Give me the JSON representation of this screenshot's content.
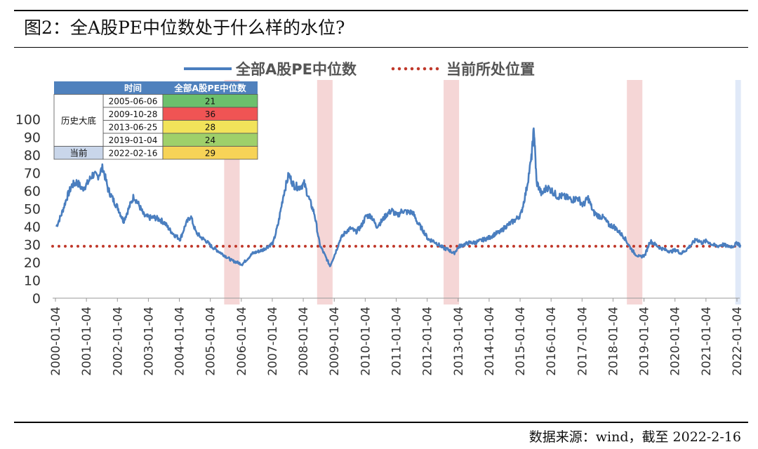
{
  "header": {
    "title": "图2：全A股PE中位数处于什么样的水位?"
  },
  "footer": {
    "source": "数据来源：wind，截至 2022-2-16"
  },
  "chart_data": {
    "type": "line",
    "title": "",
    "xlabel": "",
    "ylabel": "",
    "ylim": [
      0,
      100
    ],
    "yticks": [
      0,
      10,
      20,
      30,
      40,
      50,
      60,
      70,
      80,
      90,
      100
    ],
    "xticks": [
      "2000-01-04",
      "2001-01-04",
      "2002-01-04",
      "2003-01-04",
      "2004-01-04",
      "2005-01-04",
      "2006-01-04",
      "2007-01-04",
      "2008-01-04",
      "2009-01-04",
      "2010-01-04",
      "2011-01-04",
      "2012-01-04",
      "2013-01-04",
      "2014-01-04",
      "2015-01-04",
      "2016-01-04",
      "2017-01-04",
      "2018-01-04",
      "2019-01-04",
      "2020-01-04",
      "2021-01-04",
      "2022-01-04"
    ],
    "grid": false,
    "legend": {
      "position": "top",
      "items": [
        {
          "label": "全部A股PE中位数",
          "color": "#4a7ebf",
          "style": "solid"
        },
        {
          "label": "当前所处位置",
          "color": "#c0392b",
          "style": "dotted"
        }
      ]
    },
    "reference_line": {
      "value": 29,
      "label": "当前所处位置"
    },
    "highlight_bands": [
      {
        "start": "2005-06",
        "end": "2005-12",
        "color": "#f2c8c8"
      },
      {
        "start": "2008-06",
        "end": "2008-12",
        "color": "#f2c8c8"
      },
      {
        "start": "2012-07",
        "end": "2013-01",
        "color": "#f2c8c8"
      },
      {
        "start": "2018-06",
        "end": "2018-12",
        "color": "#f2c8c8"
      },
      {
        "start": "2021-12",
        "end": "2022-02",
        "color": "#d6e2f5"
      }
    ],
    "series": [
      {
        "name": "全部A股PE中位数",
        "color": "#4a7ebf",
        "points": [
          [
            "2000-01",
            40
          ],
          [
            "2000-03",
            47
          ],
          [
            "2000-05",
            56
          ],
          [
            "2000-07",
            63
          ],
          [
            "2000-09",
            65
          ],
          [
            "2000-11",
            61
          ],
          [
            "2001-01",
            64
          ],
          [
            "2001-03",
            69
          ],
          [
            "2001-05",
            68
          ],
          [
            "2001-07",
            73
          ],
          [
            "2001-09",
            61
          ],
          [
            "2001-11",
            55
          ],
          [
            "2002-01",
            50
          ],
          [
            "2002-03",
            43
          ],
          [
            "2002-05",
            50
          ],
          [
            "2002-07",
            57
          ],
          [
            "2002-09",
            52
          ],
          [
            "2002-11",
            46
          ],
          [
            "2003-01",
            45
          ],
          [
            "2003-03",
            45
          ],
          [
            "2003-05",
            44
          ],
          [
            "2003-07",
            42
          ],
          [
            "2003-09",
            38
          ],
          [
            "2003-11",
            35
          ],
          [
            "2004-01",
            33
          ],
          [
            "2004-03",
            41
          ],
          [
            "2004-05",
            46
          ],
          [
            "2004-07",
            37
          ],
          [
            "2004-09",
            34
          ],
          [
            "2004-11",
            32
          ],
          [
            "2005-01",
            29
          ],
          [
            "2005-03",
            27
          ],
          [
            "2005-05",
            25
          ],
          [
            "2005-07",
            23
          ],
          [
            "2005-09",
            21
          ],
          [
            "2005-11",
            20
          ],
          [
            "2006-01",
            19
          ],
          [
            "2006-03",
            22
          ],
          [
            "2006-05",
            25
          ],
          [
            "2006-07",
            26
          ],
          [
            "2006-09",
            27
          ],
          [
            "2006-11",
            29
          ],
          [
            "2007-01",
            31
          ],
          [
            "2007-03",
            42
          ],
          [
            "2007-05",
            58
          ],
          [
            "2007-07",
            69
          ],
          [
            "2007-09",
            63
          ],
          [
            "2007-11",
            62
          ],
          [
            "2008-01",
            64
          ],
          [
            "2008-03",
            55
          ],
          [
            "2008-05",
            47
          ],
          [
            "2008-07",
            30
          ],
          [
            "2008-09",
            24
          ],
          [
            "2008-11",
            18
          ],
          [
            "2009-01",
            25
          ],
          [
            "2009-03",
            33
          ],
          [
            "2009-05",
            37
          ],
          [
            "2009-07",
            39
          ],
          [
            "2009-09",
            37
          ],
          [
            "2009-11",
            40
          ],
          [
            "2010-01",
            46
          ],
          [
            "2010-03",
            46
          ],
          [
            "2010-05",
            40
          ],
          [
            "2010-07",
            43
          ],
          [
            "2010-09",
            47
          ],
          [
            "2010-11",
            49
          ],
          [
            "2011-01",
            46
          ],
          [
            "2011-03",
            49
          ],
          [
            "2011-05",
            48
          ],
          [
            "2011-07",
            48
          ],
          [
            "2011-09",
            42
          ],
          [
            "2011-11",
            38
          ],
          [
            "2012-01",
            33
          ],
          [
            "2012-03",
            32
          ],
          [
            "2012-05",
            30
          ],
          [
            "2012-07",
            28
          ],
          [
            "2012-09",
            27
          ],
          [
            "2012-11",
            25
          ],
          [
            "2013-01",
            29
          ],
          [
            "2013-03",
            30
          ],
          [
            "2013-05",
            31
          ],
          [
            "2013-07",
            31
          ],
          [
            "2013-09",
            32
          ],
          [
            "2013-11",
            33
          ],
          [
            "2014-01",
            34
          ],
          [
            "2014-03",
            36
          ],
          [
            "2014-05",
            37
          ],
          [
            "2014-07",
            40
          ],
          [
            "2014-09",
            42
          ],
          [
            "2014-11",
            44
          ],
          [
            "2015-01",
            47
          ],
          [
            "2015-03",
            60
          ],
          [
            "2015-05",
            78
          ],
          [
            "2015-06",
            95
          ],
          [
            "2015-07",
            65
          ],
          [
            "2015-09",
            58
          ],
          [
            "2015-11",
            62
          ],
          [
            "2016-01",
            60
          ],
          [
            "2016-03",
            57
          ],
          [
            "2016-05",
            57
          ],
          [
            "2016-07",
            56
          ],
          [
            "2016-09",
            55
          ],
          [
            "2016-11",
            56
          ],
          [
            "2017-01",
            52
          ],
          [
            "2017-03",
            56
          ],
          [
            "2017-05",
            48
          ],
          [
            "2017-07",
            46
          ],
          [
            "2017-09",
            45
          ],
          [
            "2017-11",
            41
          ],
          [
            "2018-01",
            40
          ],
          [
            "2018-03",
            37
          ],
          [
            "2018-05",
            34
          ],
          [
            "2018-07",
            29
          ],
          [
            "2018-09",
            25
          ],
          [
            "2018-11",
            23
          ],
          [
            "2019-01",
            24
          ],
          [
            "2019-03",
            32
          ],
          [
            "2019-05",
            30
          ],
          [
            "2019-07",
            28
          ],
          [
            "2019-09",
            27
          ],
          [
            "2019-11",
            26
          ],
          [
            "2020-01",
            27
          ],
          [
            "2020-03",
            25
          ],
          [
            "2020-05",
            27
          ],
          [
            "2020-07",
            30
          ],
          [
            "2020-09",
            33
          ],
          [
            "2020-11",
            31
          ],
          [
            "2021-01",
            32
          ],
          [
            "2021-03",
            30
          ],
          [
            "2021-05",
            29
          ],
          [
            "2021-07",
            30
          ],
          [
            "2021-09",
            29
          ],
          [
            "2021-11",
            29
          ],
          [
            "2022-01",
            31
          ],
          [
            "2022-02",
            29
          ]
        ]
      }
    ],
    "table": {
      "header": [
        "",
        "时间",
        "全部A股PE中位数"
      ],
      "group_label": "历史大底",
      "rows": [
        {
          "date": "2005-06-06",
          "value": "21",
          "color": "#6cc06c"
        },
        {
          "date": "2009-10-28",
          "value": "36",
          "color": "#f05454"
        },
        {
          "date": "2013-06-25",
          "value": "28",
          "color": "#f2e35a"
        },
        {
          "date": "2019-01-04",
          "value": "24",
          "color": "#9fd06a"
        }
      ],
      "current": {
        "label": "当前",
        "date": "2022-02-16",
        "value": "29",
        "color": "#f7d357"
      }
    }
  }
}
